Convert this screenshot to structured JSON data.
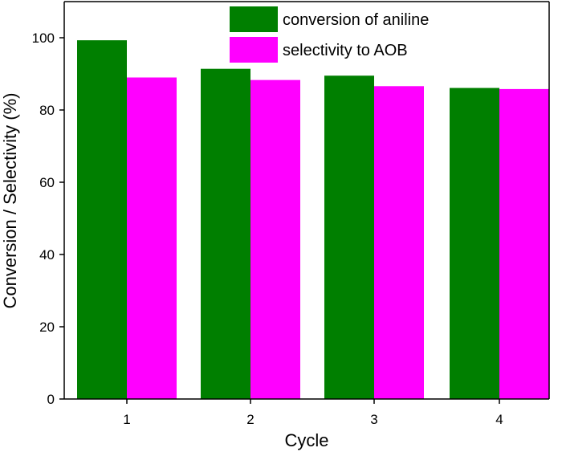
{
  "chart_data": {
    "type": "bar",
    "xlabel": "Cycle",
    "ylabel": "Conversion / Selectivity (%)",
    "categories": [
      "1",
      "2",
      "3",
      "4"
    ],
    "ylim": [
      0,
      110
    ],
    "yticks": [
      0,
      20,
      40,
      60,
      80,
      100
    ],
    "grid": false,
    "legend_position": "top-right",
    "series": [
      {
        "name": "conversion of aniline",
        "color": "#007f00",
        "values": [
          99.3,
          91.4,
          89.5,
          86.1
        ]
      },
      {
        "name": "selectivity to AOB",
        "color": "#ff00ff",
        "values": [
          89.0,
          88.3,
          86.6,
          85.8
        ]
      }
    ]
  }
}
